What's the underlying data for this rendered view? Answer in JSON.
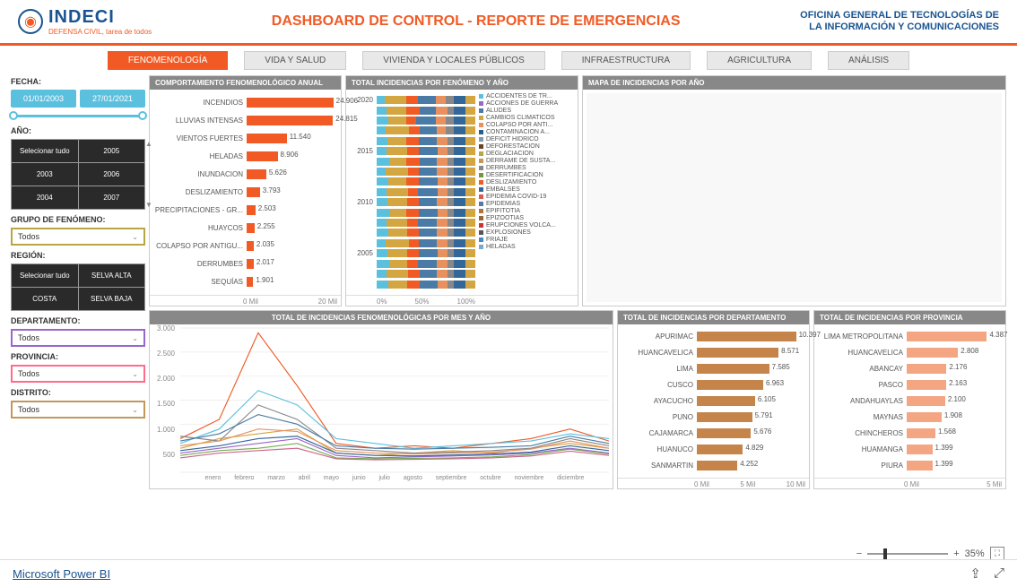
{
  "header": {
    "logo_main": "INDECI",
    "logo_sub": "DEFENSA CIVIL, tarea de todos",
    "title": "DASHBOARD DE CONTROL - REPORTE DE EMERGENCIAS",
    "office_l1": "OFICINA GENERAL DE TECNOLOGÍAS DE",
    "office_l2": "LA INFORMACIÓN Y COMUNICACIONES"
  },
  "tabs": [
    "FENOMENOLOGÍA",
    "VIDA Y SALUD",
    "VIVIENDA Y LOCALES PÚBLICOS",
    "INFRAESTRUCTURA",
    "AGRICULTURA",
    "ANÁLISIS"
  ],
  "filters": {
    "fecha_label": "FECHA:",
    "date_from": "01/01/2003",
    "date_to": "27/01/2021",
    "ano_label": "AÑO:",
    "years": [
      "Selecionar tudo",
      "2005",
      "2003",
      "2006",
      "2004",
      "2007"
    ],
    "grupo_label": "GRUPO DE FENÓMENO:",
    "grupo_value": "Todos",
    "region_label": "REGIÓN:",
    "regions": [
      "Selecionar tudo",
      "SELVA ALTA",
      "COSTA",
      "SELVA BAJA"
    ],
    "depto_label": "DEPARTAMENTO:",
    "depto_value": "Todos",
    "prov_label": "PROVINCIA:",
    "prov_value": "Todos",
    "dist_label": "DISTRITO:",
    "dist_value": "Todos"
  },
  "p1": {
    "title": "COMPORTAMIENTO FENOMENOLÓGICO ANUAL",
    "color": "#f15a24",
    "max": 25000,
    "items": [
      {
        "label": "INCENDIOS",
        "value": 24906,
        "text": "24.906"
      },
      {
        "label": "LLUVIAS INTENSAS",
        "value": 24815,
        "text": "24.815"
      },
      {
        "label": "VIENTOS FUERTES",
        "value": 11540,
        "text": "11.540"
      },
      {
        "label": "HELADAS",
        "value": 8906,
        "text": "8.906"
      },
      {
        "label": "INUNDACION",
        "value": 5626,
        "text": "5.626"
      },
      {
        "label": "DESLIZAMIENTO",
        "value": 3793,
        "text": "3.793"
      },
      {
        "label": "PRECIPITACIONES - GR...",
        "value": 2503,
        "text": "2.503"
      },
      {
        "label": "HUAYCOS",
        "value": 2255,
        "text": "2.255"
      },
      {
        "label": "COLAPSO POR ANTIGU...",
        "value": 2035,
        "text": "2.035"
      },
      {
        "label": "DERRUMBES",
        "value": 2017,
        "text": "2.017"
      },
      {
        "label": "SEQUÍAS",
        "value": 1901,
        "text": "1.901"
      }
    ],
    "axis": [
      "0 Mil",
      "20 Mil"
    ]
  },
  "p2": {
    "title": "TOTAL INCIDENCIAS POR FENÓMENO Y AÑO",
    "ylabels": [
      "2020",
      "",
      "",
      "",
      "",
      "2015",
      "",
      "",
      "",
      "",
      "2010",
      "",
      "",
      "",
      "",
      "2005",
      "",
      "",
      ""
    ],
    "legend": [
      "ACCIDENTES DE TR...",
      "ACCIONES DE GUERRA",
      "ALUDES",
      "CAMBIOS CLIMATICOS",
      "COLAPSO POR ANTI...",
      "CONTAMINACION A...",
      "DEFICIT HIDRICO",
      "DEFORESTACION",
      "DEGLACIACION",
      "DERRAME DE SUSTA...",
      "DERRUMBES",
      "DESERTIFICACION",
      "DESLIZAMIENTO",
      "EMBALSES",
      "EPIDEMIA COVID-19",
      "EPIDEMIAS",
      "EPIFITOTIA",
      "EPIZOOTIAS",
      "ERUPCIONES VOLCA...",
      "EXPLOSIONES",
      "FRIAJE",
      "HELADAS"
    ],
    "legend_colors": [
      "#5bc0de",
      "#9966cc",
      "#4a7ba6",
      "#d4a642",
      "#e8915e",
      "#2a5d8f",
      "#8899aa",
      "#6b4226",
      "#b8a642",
      "#c4965a",
      "#888",
      "#7a9442",
      "#f15a24",
      "#336699",
      "#dd5555",
      "#5577aa",
      "#aa7744",
      "#996633",
      "#cc3333",
      "#555",
      "#4488cc",
      "#77aacc"
    ],
    "axis": [
      "0%",
      "50%",
      "100%"
    ],
    "rows": [
      [
        [
          "#5bc0de",
          8
        ],
        [
          "#d4a642",
          22
        ],
        [
          "#f15a24",
          12
        ],
        [
          "#4a7ba6",
          18
        ],
        [
          "#e8915e",
          10
        ],
        [
          "#888",
          8
        ],
        [
          "#336699",
          12
        ],
        [
          "#d4a642",
          10
        ]
      ],
      [
        [
          "#5bc0de",
          10
        ],
        [
          "#d4a642",
          20
        ],
        [
          "#f15a24",
          14
        ],
        [
          "#4a7ba6",
          16
        ],
        [
          "#e8915e",
          12
        ],
        [
          "#888",
          6
        ],
        [
          "#336699",
          12
        ],
        [
          "#d4a642",
          10
        ]
      ],
      [
        [
          "#5bc0de",
          12
        ],
        [
          "#d4a642",
          18
        ],
        [
          "#f15a24",
          10
        ],
        [
          "#4a7ba6",
          20
        ],
        [
          "#e8915e",
          10
        ],
        [
          "#888",
          8
        ],
        [
          "#336699",
          12
        ],
        [
          "#d4a642",
          10
        ]
      ],
      [
        [
          "#5bc0de",
          9
        ],
        [
          "#d4a642",
          24
        ],
        [
          "#f15a24",
          11
        ],
        [
          "#4a7ba6",
          17
        ],
        [
          "#e8915e",
          9
        ],
        [
          "#888",
          8
        ],
        [
          "#336699",
          12
        ],
        [
          "#d4a642",
          10
        ]
      ],
      [
        [
          "#5bc0de",
          11
        ],
        [
          "#d4a642",
          19
        ],
        [
          "#f15a24",
          13
        ],
        [
          "#4a7ba6",
          18
        ],
        [
          "#e8915e",
          11
        ],
        [
          "#888",
          6
        ],
        [
          "#336699",
          12
        ],
        [
          "#d4a642",
          10
        ]
      ],
      [
        [
          "#5bc0de",
          10
        ],
        [
          "#d4a642",
          21
        ],
        [
          "#f15a24",
          12
        ],
        [
          "#4a7ba6",
          19
        ],
        [
          "#e8915e",
          10
        ],
        [
          "#888",
          6
        ],
        [
          "#336699",
          12
        ],
        [
          "#d4a642",
          10
        ]
      ],
      [
        [
          "#5bc0de",
          13
        ],
        [
          "#d4a642",
          17
        ],
        [
          "#f15a24",
          14
        ],
        [
          "#4a7ba6",
          17
        ],
        [
          "#e8915e",
          11
        ],
        [
          "#888",
          6
        ],
        [
          "#336699",
          12
        ],
        [
          "#d4a642",
          10
        ]
      ],
      [
        [
          "#5bc0de",
          9
        ],
        [
          "#d4a642",
          23
        ],
        [
          "#f15a24",
          11
        ],
        [
          "#4a7ba6",
          18
        ],
        [
          "#e8915e",
          11
        ],
        [
          "#888",
          6
        ],
        [
          "#336699",
          12
        ],
        [
          "#d4a642",
          10
        ]
      ],
      [
        [
          "#5bc0de",
          12
        ],
        [
          "#d4a642",
          18
        ],
        [
          "#f15a24",
          13
        ],
        [
          "#4a7ba6",
          19
        ],
        [
          "#e8915e",
          10
        ],
        [
          "#888",
          6
        ],
        [
          "#336699",
          12
        ],
        [
          "#d4a642",
          10
        ]
      ],
      [
        [
          "#5bc0de",
          10
        ],
        [
          "#d4a642",
          22
        ],
        [
          "#f15a24",
          10
        ],
        [
          "#4a7ba6",
          20
        ],
        [
          "#e8915e",
          10
        ],
        [
          "#888",
          6
        ],
        [
          "#336699",
          12
        ],
        [
          "#d4a642",
          10
        ]
      ],
      [
        [
          "#5bc0de",
          11
        ],
        [
          "#d4a642",
          20
        ],
        [
          "#f15a24",
          12
        ],
        [
          "#4a7ba6",
          18
        ],
        [
          "#e8915e",
          11
        ],
        [
          "#888",
          6
        ],
        [
          "#336699",
          12
        ],
        [
          "#d4a642",
          10
        ]
      ],
      [
        [
          "#5bc0de",
          14
        ],
        [
          "#d4a642",
          16
        ],
        [
          "#f15a24",
          13
        ],
        [
          "#4a7ba6",
          19
        ],
        [
          "#e8915e",
          10
        ],
        [
          "#888",
          6
        ],
        [
          "#336699",
          12
        ],
        [
          "#d4a642",
          10
        ]
      ],
      [
        [
          "#5bc0de",
          10
        ],
        [
          "#d4a642",
          21
        ],
        [
          "#f15a24",
          11
        ],
        [
          "#4a7ba6",
          19
        ],
        [
          "#e8915e",
          11
        ],
        [
          "#888",
          6
        ],
        [
          "#336699",
          12
        ],
        [
          "#d4a642",
          10
        ]
      ],
      [
        [
          "#5bc0de",
          12
        ],
        [
          "#d4a642",
          19
        ],
        [
          "#f15a24",
          12
        ],
        [
          "#4a7ba6",
          18
        ],
        [
          "#e8915e",
          11
        ],
        [
          "#888",
          6
        ],
        [
          "#336699",
          12
        ],
        [
          "#d4a642",
          10
        ]
      ],
      [
        [
          "#5bc0de",
          9
        ],
        [
          "#d4a642",
          24
        ],
        [
          "#f15a24",
          10
        ],
        [
          "#4a7ba6",
          18
        ],
        [
          "#e8915e",
          11
        ],
        [
          "#888",
          6
        ],
        [
          "#336699",
          12
        ],
        [
          "#d4a642",
          10
        ]
      ],
      [
        [
          "#5bc0de",
          11
        ],
        [
          "#d4a642",
          20
        ],
        [
          "#f15a24",
          12
        ],
        [
          "#4a7ba6",
          19
        ],
        [
          "#e8915e",
          10
        ],
        [
          "#888",
          6
        ],
        [
          "#336699",
          12
        ],
        [
          "#d4a642",
          10
        ]
      ],
      [
        [
          "#5bc0de",
          13
        ],
        [
          "#d4a642",
          18
        ],
        [
          "#f15a24",
          11
        ],
        [
          "#4a7ba6",
          19
        ],
        [
          "#e8915e",
          11
        ],
        [
          "#888",
          6
        ],
        [
          "#336699",
          12
        ],
        [
          "#d4a642",
          10
        ]
      ],
      [
        [
          "#5bc0de",
          10
        ],
        [
          "#d4a642",
          22
        ],
        [
          "#f15a24",
          12
        ],
        [
          "#4a7ba6",
          17
        ],
        [
          "#e8915e",
          11
        ],
        [
          "#888",
          6
        ],
        [
          "#336699",
          12
        ],
        [
          "#d4a642",
          10
        ]
      ],
      [
        [
          "#5bc0de",
          12
        ],
        [
          "#d4a642",
          19
        ],
        [
          "#f15a24",
          13
        ],
        [
          "#4a7ba6",
          18
        ],
        [
          "#e8915e",
          10
        ],
        [
          "#888",
          6
        ],
        [
          "#336699",
          12
        ],
        [
          "#d4a642",
          10
        ]
      ]
    ]
  },
  "p3": {
    "title": "MAPA DE INCIDENCIAS POR AÑO"
  },
  "p4": {
    "title": "TOTAL DE INCIDENCIAS FENOMENOLÓGICAS POR MES Y AÑO",
    "months": [
      "enero",
      "febrero",
      "marzo",
      "abril",
      "mayo",
      "junio",
      "julio",
      "agosto",
      "septiembre",
      "octubre",
      "noviembre",
      "diciembre"
    ],
    "yticks": [
      "3.000",
      "2.500",
      "2.000",
      "1.500",
      "1.000",
      "500",
      ""
    ],
    "series": [
      {
        "color": "#f15a24",
        "pts": [
          700,
          1100,
          2900,
          1800,
          600,
          500,
          550,
          500,
          600,
          700,
          900,
          650
        ]
      },
      {
        "color": "#5bc0de",
        "pts": [
          600,
          900,
          1700,
          1400,
          700,
          600,
          500,
          550,
          600,
          650,
          800,
          700
        ]
      },
      {
        "color": "#d4a642",
        "pts": [
          500,
          700,
          800,
          900,
          400,
          350,
          400,
          450,
          400,
          500,
          600,
          500
        ]
      },
      {
        "color": "#888",
        "pts": [
          750,
          650,
          1400,
          1100,
          500,
          450,
          400,
          420,
          450,
          500,
          700,
          550
        ]
      },
      {
        "color": "#9966cc",
        "pts": [
          400,
          500,
          600,
          700,
          350,
          300,
          320,
          340,
          360,
          400,
          500,
          400
        ]
      },
      {
        "color": "#4a7ba6",
        "pts": [
          650,
          800,
          1200,
          1000,
          550,
          500,
          480,
          500,
          520,
          550,
          750,
          600
        ]
      },
      {
        "color": "#e8915e",
        "pts": [
          550,
          650,
          900,
          850,
          450,
          400,
          380,
          400,
          420,
          480,
          650,
          500
        ]
      },
      {
        "color": "#336699",
        "pts": [
          450,
          550,
          700,
          750,
          400,
          350,
          340,
          360,
          380,
          420,
          550,
          450
        ]
      },
      {
        "color": "#77aa55",
        "pts": [
          350,
          450,
          500,
          600,
          300,
          280,
          290,
          300,
          320,
          370,
          480,
          380
        ]
      },
      {
        "color": "#cc6688",
        "pts": [
          300,
          400,
          450,
          500,
          280,
          260,
          270,
          280,
          300,
          340,
          440,
          350
        ]
      }
    ],
    "ymax": 3000
  },
  "p5": {
    "title": "TOTAL DE INCIDENCIAS POR DEPARTAMENTO",
    "color": "#c4844a",
    "max": 11000,
    "items": [
      {
        "label": "APURIMAC",
        "value": 10397,
        "text": "10.397"
      },
      {
        "label": "HUANCAVELICA",
        "value": 8571,
        "text": "8.571"
      },
      {
        "label": "LIMA",
        "value": 7585,
        "text": "7.585"
      },
      {
        "label": "CUSCO",
        "value": 6963,
        "text": "6.963"
      },
      {
        "label": "AYACUCHO",
        "value": 6105,
        "text": "6.105"
      },
      {
        "label": "PUNO",
        "value": 5791,
        "text": "5.791"
      },
      {
        "label": "CAJAMARCA",
        "value": 5676,
        "text": "5.676"
      },
      {
        "label": "HUANUCO",
        "value": 4829,
        "text": "4.829"
      },
      {
        "label": "SANMARTIN",
        "value": 4252,
        "text": "4.252"
      }
    ],
    "axis": [
      "0 Mil",
      "5 Mil",
      "10 Mil"
    ]
  },
  "p6": {
    "title": "TOTAL DE INCIDENCIAS POR PROVINCIA",
    "color": "#f4a582",
    "max": 5000,
    "items": [
      {
        "label": "LIMA METROPOLITANA",
        "value": 4387,
        "text": "4.387"
      },
      {
        "label": "HUANCAVELICA",
        "value": 2808,
        "text": "2.808"
      },
      {
        "label": "ABANCAY",
        "value": 2176,
        "text": "2.176"
      },
      {
        "label": "PASCO",
        "value": 2163,
        "text": "2.163"
      },
      {
        "label": "ANDAHUAYLAS",
        "value": 2100,
        "text": "2.100"
      },
      {
        "label": "MAYNAS",
        "value": 1908,
        "text": "1.908"
      },
      {
        "label": "CHINCHEROS",
        "value": 1568,
        "text": "1.568"
      },
      {
        "label": "HUAMANGA",
        "value": 1399,
        "text": "1.399"
      },
      {
        "label": "PIURA",
        "value": 1399,
        "text": "1.399"
      }
    ],
    "axis": [
      "0 Mil",
      "5 Mil"
    ]
  },
  "footer": {
    "powerbi": "Microsoft Power BI",
    "zoom": "35%"
  }
}
